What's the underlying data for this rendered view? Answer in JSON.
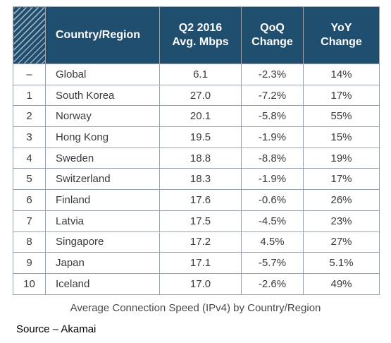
{
  "chart_data": {
    "type": "table",
    "columns": [
      "",
      "Country/Region",
      "Q2 2016 Avg. Mbps",
      "QoQ Change",
      "YoY Change"
    ],
    "rows": [
      {
        "rank": "–",
        "country": "Global",
        "avg": "6.1",
        "qoq": "-2.3%",
        "yoy": "14%"
      },
      {
        "rank": "1",
        "country": "South Korea",
        "avg": "27.0",
        "qoq": "-7.2%",
        "yoy": "17%"
      },
      {
        "rank": "2",
        "country": "Norway",
        "avg": "20.1",
        "qoq": "-5.8%",
        "yoy": "55%"
      },
      {
        "rank": "3",
        "country": "Hong Kong",
        "avg": "19.5",
        "qoq": "-1.9%",
        "yoy": "15%"
      },
      {
        "rank": "4",
        "country": "Sweden",
        "avg": "18.8",
        "qoq": "-8.8%",
        "yoy": "19%"
      },
      {
        "rank": "5",
        "country": "Switzerland",
        "avg": "18.3",
        "qoq": "-1.9%",
        "yoy": "17%"
      },
      {
        "rank": "6",
        "country": "Finland",
        "avg": "17.6",
        "qoq": "-0.6%",
        "yoy": "26%"
      },
      {
        "rank": "7",
        "country": "Latvia",
        "avg": "17.5",
        "qoq": "-4.5%",
        "yoy": "23%"
      },
      {
        "rank": "8",
        "country": "Singapore",
        "avg": "17.2",
        "qoq": "4.5%",
        "yoy": "27%"
      },
      {
        "rank": "9",
        "country": "Japan",
        "avg": "17.1",
        "qoq": "-5.7%",
        "yoy": "5.1%"
      },
      {
        "rank": "10",
        "country": "Iceland",
        "avg": "17.0",
        "qoq": "-2.6%",
        "yoy": "49%"
      }
    ],
    "caption": "Average Connection Speed (IPv4) by Country/Region",
    "source": "Source – Akamai"
  },
  "colors": {
    "header_bg": "#1f4e6e",
    "header_text": "#ffffff",
    "border": "#9aa3ab",
    "cell_text": "#3a3a3a"
  }
}
